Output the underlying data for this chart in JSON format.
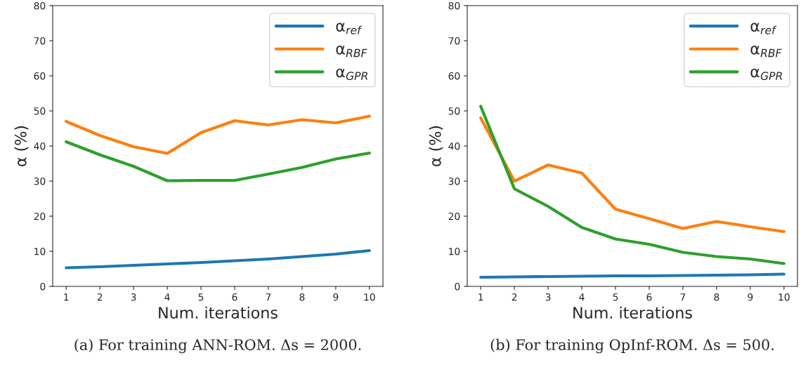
{
  "chart_data": [
    {
      "type": "line",
      "x": [
        1,
        2,
        3,
        4,
        5,
        6,
        7,
        8,
        9,
        10
      ],
      "xlabel": "Num. iterations",
      "ylabel": "α (%)",
      "xlim": [
        0.6,
        10.4
      ],
      "ylim": [
        0,
        80
      ],
      "xticks": [
        1,
        2,
        3,
        4,
        5,
        6,
        7,
        8,
        9,
        10
      ],
      "yticks": [
        0,
        10,
        20,
        30,
        40,
        50,
        60,
        70,
        80
      ],
      "grid": false,
      "legend": "top right",
      "marker": "none",
      "line_style": "solid",
      "series": [
        {
          "name": "α$_{ref}$",
          "color": "#1f77b4",
          "values": [
            5.3,
            5.6,
            6.0,
            6.4,
            6.8,
            7.3,
            7.8,
            8.5,
            9.2,
            10.2
          ]
        },
        {
          "name": "α$_{RBF}$",
          "color": "#ff7f0e",
          "values": [
            47.0,
            43.0,
            39.8,
            37.9,
            43.8,
            47.2,
            46.0,
            47.5,
            46.6,
            48.5
          ]
        },
        {
          "name": "α$_{GPR}$",
          "color": "#2ca02c",
          "values": [
            41.2,
            37.5,
            34.2,
            30.1,
            30.2,
            30.2,
            32.0,
            33.9,
            36.3,
            38.0
          ]
        }
      ],
      "annotations": [
        "(a) For training ANN-ROM. Δs = 2000."
      ]
    },
    {
      "type": "line",
      "x": [
        1,
        2,
        3,
        4,
        5,
        6,
        7,
        8,
        9,
        10
      ],
      "xlabel": "Num. iterations",
      "ylabel": "α (%)",
      "xlim": [
        0.6,
        10.4
      ],
      "ylim": [
        0,
        80
      ],
      "xticks": [
        1,
        2,
        3,
        4,
        5,
        6,
        7,
        8,
        9,
        10
      ],
      "yticks": [
        0,
        10,
        20,
        30,
        40,
        50,
        60,
        70,
        80
      ],
      "grid": false,
      "legend": "top right",
      "marker": "none",
      "line_style": "solid",
      "series": [
        {
          "name": "α$_{ref}$",
          "color": "#1f77b4",
          "values": [
            2.6,
            2.7,
            2.8,
            2.9,
            3.0,
            3.0,
            3.1,
            3.2,
            3.3,
            3.5
          ]
        },
        {
          "name": "α$_{RBF}$",
          "color": "#ff7f0e",
          "values": [
            48.0,
            30.0,
            34.6,
            32.3,
            22.0,
            19.3,
            16.5,
            18.5,
            17.0,
            15.6
          ]
        },
        {
          "name": "α$_{GPR}$",
          "color": "#2ca02c",
          "values": [
            51.3,
            27.8,
            22.8,
            16.8,
            13.5,
            12.0,
            9.7,
            8.5,
            7.8,
            6.5
          ]
        }
      ],
      "annotations": [
        "(b) For training OpInf-ROM. Δs = 500."
      ]
    }
  ]
}
